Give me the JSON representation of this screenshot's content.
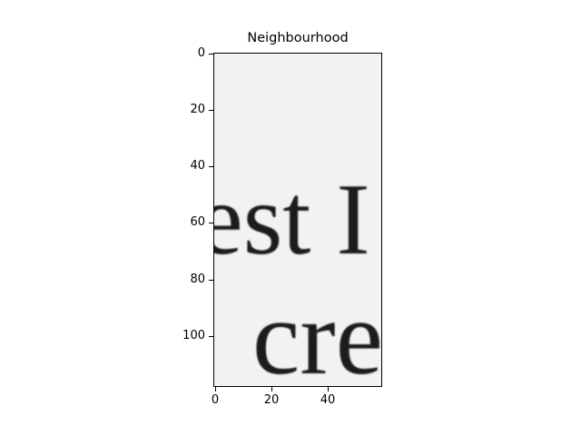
{
  "figure": {
    "title": "Neighbourhood"
  },
  "axes": {
    "yticks": [
      "0",
      "20",
      "40",
      "60",
      "80",
      "100"
    ],
    "xticks": [
      "0",
      "20",
      "40"
    ]
  },
  "image": {
    "text_line_1": "est  I",
    "text_line_2": "cre",
    "text_color": "#1a1a1a",
    "background_color": "#f3f3f3"
  }
}
